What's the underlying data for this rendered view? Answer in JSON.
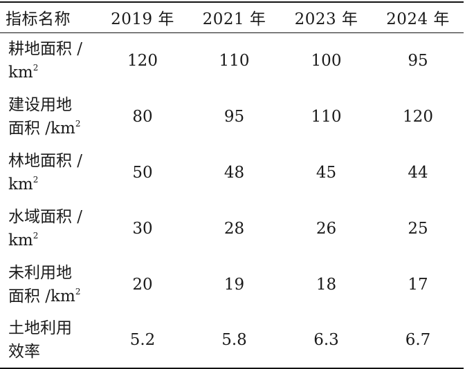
{
  "table": {
    "headers": [
      "指标名称",
      "2019 年",
      "2021 年",
      "2023 年",
      "2024 年"
    ],
    "rows": [
      {
        "name_line1": "耕地面积 /",
        "name_line2": "km",
        "unit_sup": "2",
        "values": [
          "120",
          "110",
          "100",
          "95"
        ]
      },
      {
        "name_line1": "建设用地",
        "name_line2": "面积 /km",
        "unit_sup": "2",
        "values": [
          "80",
          "95",
          "110",
          "120"
        ]
      },
      {
        "name_line1": "林地面积 /",
        "name_line2": "km",
        "unit_sup": "2",
        "values": [
          "50",
          "48",
          "45",
          "44"
        ]
      },
      {
        "name_line1": "水域面积 /",
        "name_line2": "km",
        "unit_sup": "2",
        "values": [
          "30",
          "28",
          "26",
          "25"
        ]
      },
      {
        "name_line1": "未利用地",
        "name_line2": "面积 /km",
        "unit_sup": "2",
        "values": [
          "20",
          "19",
          "18",
          "17"
        ]
      },
      {
        "name_line1": "土地利用",
        "name_line2": "效率",
        "unit_sup": "",
        "values": [
          "5.2",
          "5.8",
          "6.3",
          "6.7"
        ]
      }
    ]
  }
}
